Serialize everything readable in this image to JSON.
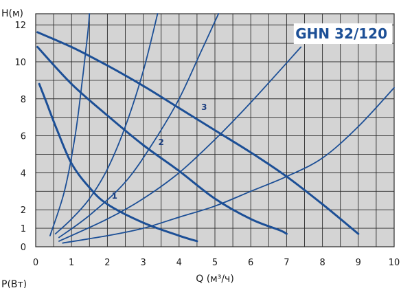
{
  "chart_data": {
    "type": "line",
    "title": "GHN 32/120",
    "xlabel": "Q (м³/ч)",
    "ylabel": "H(м)",
    "bottom_label": "P(Вт)",
    "xlim": [
      0,
      10
    ],
    "ylim": [
      0,
      12.6
    ],
    "xticks": [
      0,
      1,
      2,
      3,
      4,
      5,
      6,
      7,
      8,
      9,
      10
    ],
    "yticks": [
      0,
      1,
      2,
      4,
      6,
      8,
      10,
      12
    ],
    "grid": true,
    "plot_background": "#d4d4d4",
    "grid_color": "#2b2b2b",
    "curve_color": "#1c4f96",
    "title_color": "#1c4f96",
    "series": [
      {
        "name": "1",
        "role": "pump-curve",
        "x": [
          0.1,
          0.3,
          0.6,
          1.0,
          1.5,
          2.0,
          3.0,
          4.0,
          4.5
        ],
        "y": [
          8.8,
          7.8,
          6.3,
          4.5,
          3.2,
          2.3,
          1.3,
          0.6,
          0.3
        ]
      },
      {
        "name": "2",
        "role": "pump-curve",
        "x": [
          0.05,
          1.0,
          2.0,
          3.0,
          4.0,
          5.0,
          6.0,
          6.8,
          7.0
        ],
        "y": [
          10.8,
          8.8,
          7.1,
          5.5,
          4.1,
          2.6,
          1.5,
          0.9,
          0.7
        ]
      },
      {
        "name": "3",
        "role": "pump-curve",
        "x": [
          0.05,
          1.0,
          2.0,
          3.0,
          4.0,
          5.0,
          6.0,
          7.0,
          8.0,
          9.0
        ],
        "y": [
          11.6,
          10.8,
          9.8,
          8.7,
          7.5,
          6.3,
          5.1,
          3.8,
          2.3,
          0.7
        ]
      },
      {
        "name": "",
        "role": "system-curve",
        "x": [
          0.4,
          0.8,
          1.1,
          1.3,
          1.45,
          1.5
        ],
        "y": [
          0.6,
          3.0,
          6.0,
          9.0,
          11.5,
          12.6
        ]
      },
      {
        "name": "",
        "role": "system-curve",
        "x": [
          0.55,
          1.0,
          1.5,
          2.0,
          2.5,
          3.0,
          3.4
        ],
        "y": [
          0.7,
          1.5,
          2.6,
          4.2,
          6.5,
          9.5,
          12.6
        ]
      },
      {
        "name": "",
        "role": "system-curve",
        "x": [
          0.65,
          1.5,
          2.5,
          3.3,
          4.0,
          4.6,
          5.1
        ],
        "y": [
          0.5,
          1.7,
          3.5,
          5.7,
          8.0,
          10.5,
          12.6
        ]
      },
      {
        "name": "",
        "role": "system-curve",
        "x": [
          0.65,
          2.0,
          3.0,
          4.0,
          5.0,
          6.0,
          7.4
        ],
        "y": [
          0.3,
          1.5,
          2.6,
          4.0,
          5.8,
          7.8,
          10.8
        ]
      },
      {
        "name": "",
        "role": "system-curve",
        "x": [
          0.75,
          2.0,
          3.0,
          4.0,
          5.0,
          6.0,
          7.0,
          8.0,
          9.0,
          10.0
        ],
        "y": [
          0.2,
          0.6,
          1.0,
          1.6,
          2.2,
          3.0,
          3.8,
          4.8,
          6.5,
          8.6
        ]
      }
    ],
    "curve_labels": [
      {
        "text": "1",
        "x": 2.2,
        "y": 2.6
      },
      {
        "text": "2",
        "x": 3.5,
        "y": 5.5
      },
      {
        "text": "3",
        "x": 4.7,
        "y": 7.4
      }
    ]
  }
}
